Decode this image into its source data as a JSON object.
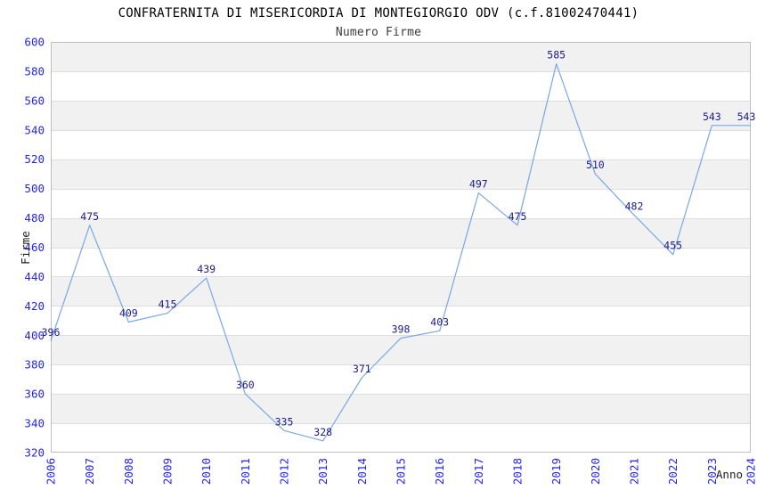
{
  "header": {
    "title": "CONFRATERNITA DI MISERICORDIA DI MONTEGIORGIO ODV (c.f.81002470441)",
    "subtitle": "Numero Firme"
  },
  "chart_data": {
    "type": "line",
    "title": "CONFRATERNITA DI MISERICORDIA DI MONTEGIORGIO ODV (c.f.81002470441)",
    "subtitle": "Numero Firme",
    "xlabel": "Anno",
    "ylabel": "Firme",
    "x": [
      2006,
      2007,
      2008,
      2009,
      2010,
      2011,
      2012,
      2013,
      2014,
      2015,
      2016,
      2017,
      2018,
      2019,
      2020,
      2021,
      2022,
      2023,
      2024
    ],
    "values": [
      396,
      475,
      409,
      415,
      439,
      360,
      335,
      328,
      371,
      398,
      403,
      497,
      475,
      585,
      510,
      482,
      455,
      543,
      543
    ],
    "series_name": "Numero Firme",
    "ylim": [
      320,
      600
    ],
    "ytick_step": 20,
    "yticks": [
      320,
      340,
      360,
      380,
      400,
      420,
      440,
      460,
      480,
      500,
      520,
      540,
      560,
      580,
      600
    ],
    "grid": true,
    "striped_background": true,
    "legend": false,
    "point_labels_visible": true,
    "colors": {
      "line": "#7aa8e4",
      "point_label": "#1a1a8c",
      "tick_label": "#2424ee",
      "band_gray": "#f1f1f1",
      "band_white": "#ffffff",
      "gridline": "#dedede",
      "border": "#bebebe",
      "title": "#000000",
      "subtitle": "#3c3c3c",
      "axis_label": "#1a1a1a"
    }
  }
}
